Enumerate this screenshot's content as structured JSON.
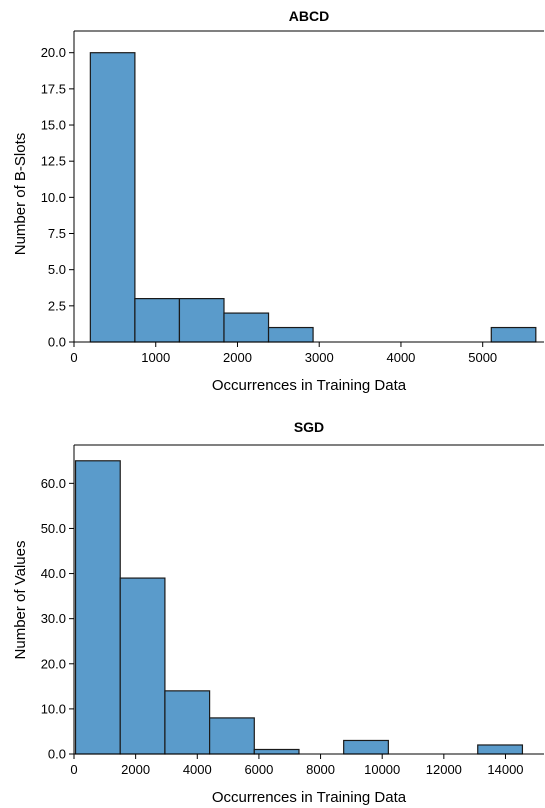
{
  "chart_data": [
    {
      "type": "bar",
      "title": "ABCD",
      "xlabel": "Occurrences in Training Data",
      "ylabel": "Number of B-Slots",
      "color": "#5a9bcb",
      "bins": [
        {
          "x0": 200,
          "x1": 745,
          "value": 20
        },
        {
          "x0": 745,
          "x1": 1290,
          "value": 3
        },
        {
          "x0": 1290,
          "x1": 1835,
          "value": 3
        },
        {
          "x0": 1835,
          "x1": 2380,
          "value": 2
        },
        {
          "x0": 2380,
          "x1": 2925,
          "value": 1
        },
        {
          "x0": 5105,
          "x1": 5650,
          "value": 1
        }
      ],
      "xlim": [
        0,
        5750
      ],
      "ylim": [
        0,
        21.5
      ],
      "xticks": [
        0,
        1000,
        2000,
        3000,
        4000,
        5000
      ],
      "xtick_labels": [
        "0",
        "1000",
        "2000",
        "3000",
        "4000",
        "5000"
      ],
      "yticks": [
        0,
        2.5,
        5,
        7.5,
        10,
        12.5,
        15,
        17.5,
        20
      ],
      "ytick_labels": [
        "0.0",
        "2.5",
        "5.0",
        "7.5",
        "10.0",
        "12.5",
        "15.0",
        "17.5",
        "20.0"
      ],
      "grid": false
    },
    {
      "type": "bar",
      "title": "SGD",
      "xlabel": "Occurrences in Training Data",
      "ylabel": "Number of Values",
      "color": "#5a9bcb",
      "bins": [
        {
          "x0": 50,
          "x1": 1500,
          "value": 65
        },
        {
          "x0": 1500,
          "x1": 2950,
          "value": 39
        },
        {
          "x0": 2950,
          "x1": 4400,
          "value": 14
        },
        {
          "x0": 4400,
          "x1": 5850,
          "value": 8
        },
        {
          "x0": 5850,
          "x1": 7300,
          "value": 1
        },
        {
          "x0": 8750,
          "x1": 10200,
          "value": 3
        },
        {
          "x0": 13100,
          "x1": 14550,
          "value": 2
        }
      ],
      "xlim": [
        0,
        15250
      ],
      "ylim": [
        0,
        68.5
      ],
      "xticks": [
        0,
        2000,
        4000,
        6000,
        8000,
        10000,
        12000,
        14000
      ],
      "xtick_labels": [
        "0",
        "2000",
        "4000",
        "6000",
        "8000",
        "10000",
        "12000",
        "14000"
      ],
      "yticks": [
        0,
        10,
        20,
        30,
        40,
        50,
        60
      ],
      "ytick_labels": [
        "0.0",
        "10.0",
        "20.0",
        "30.0",
        "40.0",
        "50.0",
        "60.0"
      ],
      "grid": false
    }
  ]
}
